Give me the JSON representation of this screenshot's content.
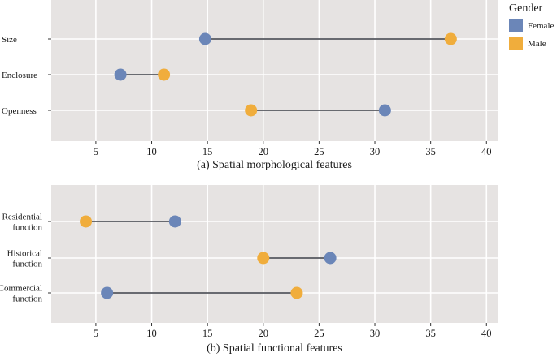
{
  "colors": {
    "female": "#6b86b8",
    "male": "#f0ad3c",
    "panel": "#e6e3e2",
    "grid": "#ffffff",
    "segment": "#3a3d45"
  },
  "legend": {
    "title": "Gender",
    "entries": [
      {
        "label": "Female",
        "key": "female"
      },
      {
        "label": "Male",
        "key": "male"
      }
    ]
  },
  "chart_data": [
    {
      "type": "dumbbell",
      "title": "(a) Spatial morphological features",
      "xlim": [
        1,
        41
      ],
      "xticks": [
        5,
        10,
        15,
        20,
        25,
        30,
        35,
        40
      ],
      "categories": [
        {
          "label": [
            "Size"
          ],
          "female": 14.8,
          "male": 36.8
        },
        {
          "label": [
            "Enclosure"
          ],
          "female": 7.2,
          "male": 11.1
        },
        {
          "label": [
            "Openness"
          ],
          "female": 30.9,
          "male": 18.9
        }
      ]
    },
    {
      "type": "dumbbell",
      "title": "(b) Spatial functional features",
      "xlim": [
        1,
        41
      ],
      "xticks": [
        5,
        10,
        15,
        20,
        25,
        30,
        35,
        40
      ],
      "categories": [
        {
          "label": [
            "Residential",
            "function"
          ],
          "female": 12.1,
          "male": 4.1
        },
        {
          "label": [
            "Historical",
            "function"
          ],
          "female": 26.0,
          "male": 20.0
        },
        {
          "label": [
            "Commercial",
            "function"
          ],
          "female": 6.0,
          "male": 23.0
        }
      ]
    }
  ]
}
